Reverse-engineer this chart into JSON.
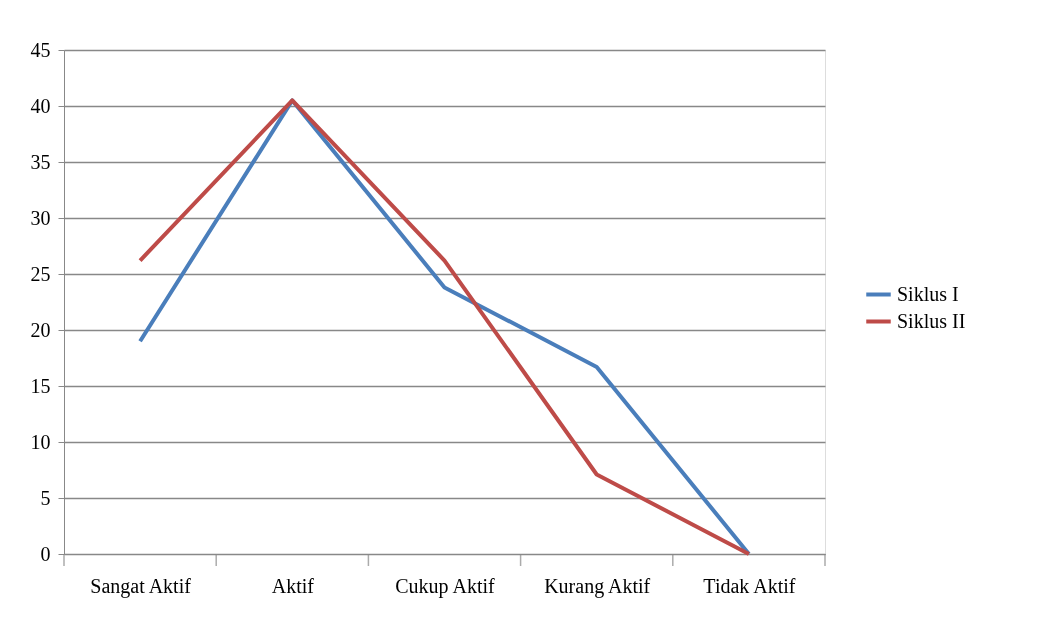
{
  "chart_data": {
    "type": "line",
    "categories": [
      "Sangat Aktif",
      "Aktif",
      "Cukup Aktif",
      "Kurang Aktif",
      "Tidak Aktif"
    ],
    "series": [
      {
        "name": "Siklus I",
        "color": "#4a7ebb",
        "values": [
          19,
          40.5,
          23.8,
          16.7,
          0
        ]
      },
      {
        "name": "Siklus II",
        "color": "#be4b48",
        "values": [
          26.2,
          40.5,
          26.2,
          7.1,
          0
        ]
      }
    ],
    "ylim": [
      0,
      45
    ],
    "yticks": [
      0,
      5,
      10,
      15,
      20,
      25,
      30,
      35,
      40,
      45
    ],
    "grid": "y",
    "legend": "right",
    "marker": "none",
    "line_style": "solid"
  }
}
